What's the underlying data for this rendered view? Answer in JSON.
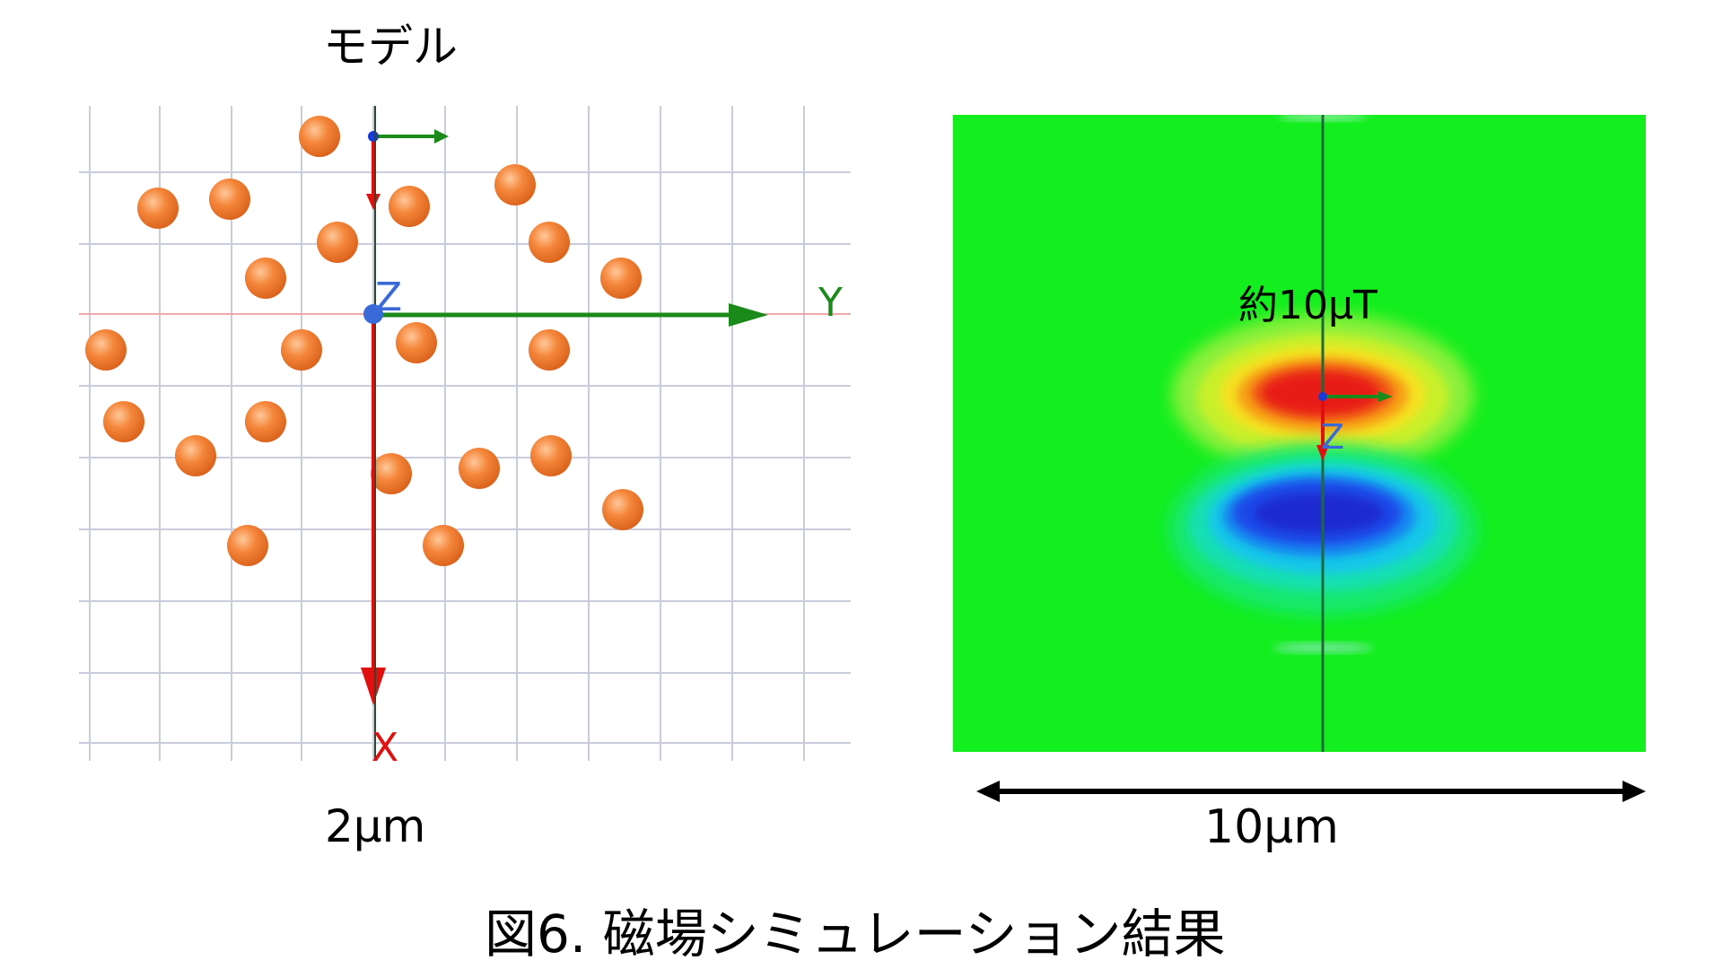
{
  "model_panel": {
    "title": "モデル",
    "scale_label": "2μm",
    "axis_labels": {
      "x": "X",
      "y": "Y",
      "z": "Z"
    },
    "particle_color": "#f07a2a",
    "grid_color": "#c9ccdc",
    "axis_colors": {
      "x": "#e01010",
      "y": "#1a8a1a",
      "z": "#3a6ad8"
    }
  },
  "field_panel": {
    "peak_label": "約10μT",
    "scale_label": "10μm",
    "background_color": "#12ee1e",
    "axis_labels": {
      "z": "Z"
    }
  },
  "caption": "図6. 磁場シミュレーション結果"
}
